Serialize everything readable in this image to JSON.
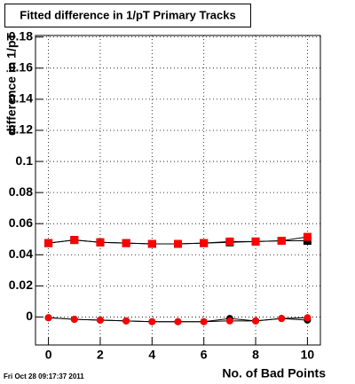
{
  "chart_data": {
    "type": "scatter",
    "title": "Fitted difference in 1/pT Primary Tracks",
    "x_label": "No. of Bad Points",
    "y_label": "difference in 1/pT",
    "footer": "Fri Oct 28 09:17:37 2011",
    "x": [
      0,
      1,
      2,
      3,
      4,
      5,
      6,
      7,
      8,
      9,
      10
    ],
    "series": [
      {
        "name": "black squares",
        "color": "#000000",
        "marker": "square",
        "values": [
          0.0475,
          0.0495,
          0.048,
          0.0475,
          0.047,
          0.047,
          0.0475,
          0.048,
          0.0485,
          0.049,
          0.049
        ]
      },
      {
        "name": "black circles",
        "color": "#000000",
        "marker": "circle",
        "values": [
          -0.0005,
          -0.0015,
          -0.002,
          -0.0025,
          -0.003,
          -0.003,
          -0.003,
          -0.001,
          -0.0025,
          -0.001,
          -0.002
        ]
      },
      {
        "name": "red squares",
        "color": "#ff0000",
        "marker": "square",
        "values": [
          0.0475,
          0.0495,
          0.048,
          0.0475,
          0.047,
          0.047,
          0.0475,
          0.0485,
          0.0485,
          0.049,
          0.0515
        ]
      },
      {
        "name": "red circles",
        "color": "#ff0000",
        "marker": "circle",
        "values": [
          -0.0005,
          -0.0015,
          -0.002,
          -0.0025,
          -0.003,
          -0.003,
          -0.003,
          -0.0025,
          -0.0025,
          -0.001,
          -0.0005
        ]
      }
    ],
    "xlim": [
      -0.5,
      10.5
    ],
    "ylim": [
      -0.018,
      0.181
    ],
    "xticks": [
      0,
      2,
      4,
      6,
      8,
      10
    ],
    "yticks": [
      0,
      0.02,
      0.04,
      0.06,
      0.08,
      0.1,
      0.12,
      0.14,
      0.16,
      0.18
    ],
    "grid": true
  }
}
